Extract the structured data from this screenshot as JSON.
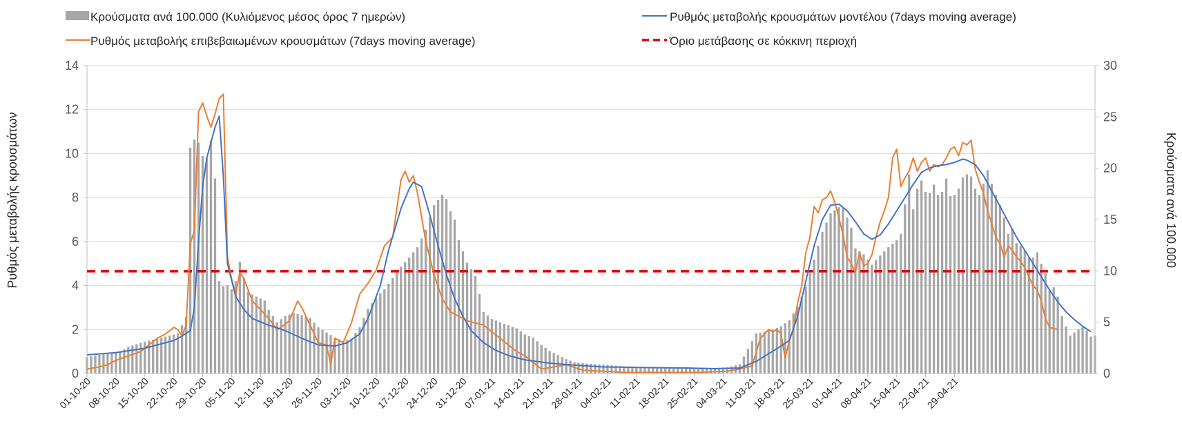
{
  "chart_data": {
    "type": "bar+line",
    "colors": {
      "bars": "#a6a6a6",
      "model": "#4472c4",
      "confirmed": "#ed7d31",
      "threshold": "#e00000",
      "grid": "#d9d9d9",
      "axis_text": "#595959"
    },
    "legend": {
      "bars": "Κρούσματα ανά 100.000 (Κυλιόμενος μέσος όρος 7 ημερών)",
      "model": "Ρυθμός μεταβολής κρουσμάτων μοντέλου (7days moving average)",
      "confirmed": "Ρυθμός μεταβολής επιβεβαιωμένων κρουσμάτων (7days moving average)",
      "threshold": "Όριο μετάβασης σε κόκκινη περιοχή"
    },
    "y_left": {
      "label": "Ρυθμός μεταβολής κρουσμάτων",
      "min": 0,
      "max": 14,
      "ticks": [
        0,
        2,
        4,
        6,
        8,
        10,
        12,
        14
      ]
    },
    "y_right": {
      "label": "Κρούσματα ανά 100.000",
      "min": 0,
      "max": 30,
      "ticks": [
        0,
        5,
        10,
        15,
        20,
        25,
        30
      ]
    },
    "x_tick_labels": [
      "01-10-20",
      "08-10-20",
      "15-10-20",
      "22-10-20",
      "29-10-20",
      "05-11-20",
      "12-11-20",
      "19-11-20",
      "26-11-20",
      "03-12-20",
      "10-12-20",
      "17-12-20",
      "24-12-20",
      "31-12-20",
      "07-01-21",
      "14-01-21",
      "21-01-21",
      "28-01-21",
      "04-02-21",
      "11-02-21",
      "18-02-21",
      "25-02-21",
      "04-03-21",
      "11-03-21",
      "18-03-21",
      "25-03-21",
      "01-04-21",
      "08-04-21",
      "15-04-21",
      "22-04-21",
      "29-04-21"
    ],
    "days": 217,
    "threshold_value": 4.65,
    "bars_points": [
      [
        0,
        1.6
      ],
      [
        4,
        1.9
      ],
      [
        8,
        2.1
      ],
      [
        10,
        2.6
      ],
      [
        14,
        3.1
      ],
      [
        18,
        3.5
      ],
      [
        22,
        3.9
      ],
      [
        24,
        5.5
      ],
      [
        25,
        22.0
      ],
      [
        26,
        22.8
      ],
      [
        27,
        22.5
      ],
      [
        28,
        21.2
      ],
      [
        29,
        21.0
      ],
      [
        30,
        22.7
      ],
      [
        31,
        19.0
      ],
      [
        32,
        9.0
      ],
      [
        33,
        8.5
      ],
      [
        34,
        8.6
      ],
      [
        35,
        8.2
      ],
      [
        36,
        9.0
      ],
      [
        37,
        10.9
      ],
      [
        38,
        9.3
      ],
      [
        39,
        8.0
      ],
      [
        40,
        7.7
      ],
      [
        41,
        7.5
      ],
      [
        42,
        7.3
      ],
      [
        43,
        7.1
      ],
      [
        44,
        6.2
      ],
      [
        46,
        5.0
      ],
      [
        48,
        5.6
      ],
      [
        50,
        5.9
      ],
      [
        52,
        5.7
      ],
      [
        54,
        5.4
      ],
      [
        56,
        4.5
      ],
      [
        58,
        4.0
      ],
      [
        60,
        3.5
      ],
      [
        62,
        3.2
      ],
      [
        64,
        3.4
      ],
      [
        66,
        4.5
      ],
      [
        68,
        6.3
      ],
      [
        70,
        7.4
      ],
      [
        72,
        8.2
      ],
      [
        74,
        9.3
      ],
      [
        76,
        10.4
      ],
      [
        78,
        11.3
      ],
      [
        80,
        12.3
      ],
      [
        82,
        14.0
      ],
      [
        84,
        16.4
      ],
      [
        86,
        17.4
      ],
      [
        87,
        17.0
      ],
      [
        88,
        15.8
      ],
      [
        89,
        15.0
      ],
      [
        90,
        13.0
      ],
      [
        92,
        10.8
      ],
      [
        94,
        9.5
      ],
      [
        96,
        6.0
      ],
      [
        98,
        5.3
      ],
      [
        100,
        5.0
      ],
      [
        102,
        4.7
      ],
      [
        104,
        4.4
      ],
      [
        106,
        3.8
      ],
      [
        108,
        3.5
      ],
      [
        110,
        2.8
      ],
      [
        112,
        2.2
      ],
      [
        114,
        1.8
      ],
      [
        116,
        1.4
      ],
      [
        118,
        1.1
      ],
      [
        120,
        1.0
      ],
      [
        124,
        0.9
      ],
      [
        130,
        0.7
      ],
      [
        135,
        0.6
      ],
      [
        140,
        0.6
      ],
      [
        145,
        0.5
      ],
      [
        150,
        0.5
      ],
      [
        155,
        0.6
      ],
      [
        158,
        0.9
      ],
      [
        162,
        3.9
      ],
      [
        164,
        4.1
      ],
      [
        166,
        4.3
      ],
      [
        168,
        4.6
      ],
      [
        170,
        5.2
      ],
      [
        172,
        6.5
      ],
      [
        174,
        8.5
      ],
      [
        176,
        11.1
      ],
      [
        178,
        13.8
      ],
      [
        180,
        15.6
      ],
      [
        182,
        16.2
      ],
      [
        183,
        16.1
      ],
      [
        184,
        15.2
      ],
      [
        185,
        14.2
      ],
      [
        186,
        12.2
      ],
      [
        188,
        11.6
      ],
      [
        190,
        10.6
      ],
      [
        192,
        11.5
      ],
      [
        194,
        12.3
      ],
      [
        196,
        13.0
      ],
      [
        197,
        13.6
      ],
      [
        198,
        16.5
      ],
      [
        199,
        19.4
      ],
      [
        200,
        16.0
      ],
      [
        201,
        18.0
      ],
      [
        202,
        18.8
      ],
      [
        203,
        17.7
      ],
      [
        204,
        17.6
      ],
      [
        205,
        18.4
      ],
      [
        206,
        17.4
      ],
      [
        207,
        17.7
      ],
      [
        208,
        19.0
      ],
      [
        209,
        17.3
      ],
      [
        210,
        17.4
      ],
      [
        211,
        18.0
      ],
      [
        212,
        19.1
      ],
      [
        213,
        19.4
      ],
      [
        214,
        19.2
      ],
      [
        215,
        18.0
      ],
      [
        216,
        17.4
      ],
      [
        217,
        18.5
      ],
      [
        218,
        19.8
      ],
      [
        219,
        18.5
      ],
      [
        220,
        17.4
      ],
      [
        221,
        16.4
      ],
      [
        222,
        15.2
      ],
      [
        223,
        13.6
      ],
      [
        224,
        14.1
      ],
      [
        225,
        12.7
      ],
      [
        226,
        12.4
      ],
      [
        227,
        12.0
      ],
      [
        228,
        11.3
      ],
      [
        229,
        11.3
      ],
      [
        230,
        11.8
      ],
      [
        231,
        10.7
      ],
      [
        232,
        9.8
      ],
      [
        233,
        8.1
      ],
      [
        234,
        8.4
      ],
      [
        235,
        7.5
      ],
      [
        236,
        5.6
      ],
      [
        237,
        4.6
      ],
      [
        238,
        3.7
      ],
      [
        239,
        4.0
      ],
      [
        240,
        4.3
      ],
      [
        241,
        4.5
      ],
      [
        242,
        4.2
      ],
      [
        243,
        3.6
      ],
      [
        244,
        3.7
      ]
    ],
    "model_points": [
      [
        0,
        0.85
      ],
      [
        7,
        0.95
      ],
      [
        14,
        1.15
      ],
      [
        21,
        1.5
      ],
      [
        23,
        1.7
      ],
      [
        25,
        1.95
      ],
      [
        26,
        3.0
      ],
      [
        27,
        6.0
      ],
      [
        28,
        8.5
      ],
      [
        29,
        9.8
      ],
      [
        30,
        10.5
      ],
      [
        31,
        11.2
      ],
      [
        32,
        11.7
      ],
      [
        33,
        9.0
      ],
      [
        34,
        5.0
      ],
      [
        36,
        3.5
      ],
      [
        38,
        2.9
      ],
      [
        40,
        2.5
      ],
      [
        44,
        2.2
      ],
      [
        48,
        1.95
      ],
      [
        52,
        1.6
      ],
      [
        56,
        1.3
      ],
      [
        60,
        1.25
      ],
      [
        63,
        1.4
      ],
      [
        66,
        1.8
      ],
      [
        68,
        2.5
      ],
      [
        71,
        4.0
      ],
      [
        73,
        5.6
      ],
      [
        76,
        7.5
      ],
      [
        78,
        8.4
      ],
      [
        79,
        8.7
      ],
      [
        81,
        8.5
      ],
      [
        83,
        7.2
      ],
      [
        85,
        5.8
      ],
      [
        87,
        4.5
      ],
      [
        89,
        3.4
      ],
      [
        91,
        2.6
      ],
      [
        93,
        1.95
      ],
      [
        96,
        1.4
      ],
      [
        99,
        1.05
      ],
      [
        102,
        0.82
      ],
      [
        106,
        0.62
      ],
      [
        112,
        0.47
      ],
      [
        118,
        0.38
      ],
      [
        125,
        0.3
      ],
      [
        135,
        0.27
      ],
      [
        145,
        0.25
      ],
      [
        152,
        0.22
      ],
      [
        158,
        0.25
      ],
      [
        162,
        0.55
      ],
      [
        165,
        0.9
      ],
      [
        168,
        1.25
      ],
      [
        170,
        1.5
      ],
      [
        172,
        2.6
      ],
      [
        174,
        4.2
      ],
      [
        176,
        5.8
      ],
      [
        178,
        7.0
      ],
      [
        180,
        7.65
      ],
      [
        182,
        7.7
      ],
      [
        184,
        7.4
      ],
      [
        186,
        6.9
      ],
      [
        188,
        6.35
      ],
      [
        190,
        6.1
      ],
      [
        192,
        6.3
      ],
      [
        194,
        6.8
      ],
      [
        196,
        7.4
      ],
      [
        198,
        8.0
      ],
      [
        200,
        8.6
      ],
      [
        202,
        9.15
      ],
      [
        204,
        9.35
      ],
      [
        206,
        9.45
      ],
      [
        208,
        9.5
      ],
      [
        210,
        9.6
      ],
      [
        212,
        9.75
      ],
      [
        213,
        9.7
      ],
      [
        215,
        9.5
      ],
      [
        217,
        9.0
      ],
      [
        219,
        8.3
      ],
      [
        221,
        7.6
      ],
      [
        223,
        6.9
      ],
      [
        225,
        6.2
      ],
      [
        227,
        5.6
      ],
      [
        229,
        5.0
      ],
      [
        231,
        4.4
      ],
      [
        233,
        3.8
      ],
      [
        235,
        3.25
      ],
      [
        237,
        2.8
      ],
      [
        239,
        2.45
      ],
      [
        241,
        2.15
      ],
      [
        243,
        1.9
      ]
    ],
    "confirmed_points": [
      [
        0,
        0.2
      ],
      [
        3,
        0.3
      ],
      [
        5,
        0.4
      ],
      [
        7,
        0.6
      ],
      [
        10,
        0.8
      ],
      [
        13,
        1.0
      ],
      [
        15,
        1.3
      ],
      [
        17,
        1.6
      ],
      [
        19,
        1.8
      ],
      [
        21,
        2.1
      ],
      [
        22,
        2.0
      ],
      [
        23,
        1.7
      ],
      [
        24,
        2.2
      ],
      [
        25,
        5.9
      ],
      [
        26,
        6.5
      ],
      [
        27,
        11.9
      ],
      [
        28,
        12.3
      ],
      [
        29,
        11.7
      ],
      [
        30,
        11.2
      ],
      [
        31,
        11.8
      ],
      [
        32,
        12.5
      ],
      [
        33,
        12.7
      ],
      [
        34,
        5.3
      ],
      [
        35,
        4.3
      ],
      [
        36,
        3.6
      ],
      [
        37,
        4.6
      ],
      [
        38,
        4.3
      ],
      [
        39,
        3.8
      ],
      [
        40,
        3.3
      ],
      [
        42,
        2.9
      ],
      [
        44,
        2.5
      ],
      [
        46,
        2.0
      ],
      [
        47,
        2.1
      ],
      [
        49,
        2.4
      ],
      [
        51,
        3.3
      ],
      [
        52,
        3.0
      ],
      [
        54,
        2.2
      ],
      [
        56,
        1.4
      ],
      [
        58,
        1.3
      ],
      [
        59,
        0.4
      ],
      [
        60,
        1.6
      ],
      [
        62,
        1.4
      ],
      [
        64,
        2.3
      ],
      [
        66,
        3.6
      ],
      [
        68,
        4.1
      ],
      [
        70,
        4.7
      ],
      [
        72,
        5.8
      ],
      [
        74,
        6.2
      ],
      [
        76,
        8.8
      ],
      [
        77,
        9.2
      ],
      [
        78,
        8.7
      ],
      [
        79,
        9.0
      ],
      [
        80,
        8.2
      ],
      [
        82,
        6.0
      ],
      [
        84,
        4.5
      ],
      [
        86,
        3.4
      ],
      [
        88,
        2.8
      ],
      [
        90,
        2.6
      ],
      [
        92,
        2.4
      ],
      [
        94,
        2.3
      ],
      [
        96,
        2.2
      ],
      [
        98,
        1.9
      ],
      [
        100,
        1.6
      ],
      [
        102,
        1.3
      ],
      [
        104,
        1.0
      ],
      [
        106,
        0.8
      ],
      [
        108,
        0.5
      ],
      [
        110,
        0.2
      ],
      [
        113,
        0.3
      ],
      [
        116,
        0.4
      ],
      [
        120,
        0.15
      ],
      [
        125,
        0.1
      ],
      [
        130,
        0.05
      ],
      [
        140,
        0.05
      ],
      [
        148,
        0.05
      ],
      [
        155,
        0.1
      ],
      [
        158,
        0.2
      ],
      [
        161,
        0.35
      ],
      [
        163,
        1.6
      ],
      [
        164,
        1.8
      ],
      [
        165,
        2.0
      ],
      [
        166,
        1.9
      ],
      [
        167,
        2.0
      ],
      [
        168,
        1.8
      ],
      [
        169,
        0.7
      ],
      [
        170,
        1.5
      ],
      [
        171,
        2.0
      ],
      [
        172,
        3.2
      ],
      [
        173,
        4.0
      ],
      [
        174,
        5.5
      ],
      [
        175,
        6.2
      ],
      [
        176,
        7.6
      ],
      [
        177,
        7.3
      ],
      [
        178,
        7.9
      ],
      [
        179,
        8.0
      ],
      [
        180,
        8.3
      ],
      [
        181,
        7.8
      ],
      [
        182,
        7.1
      ],
      [
        183,
        6.3
      ],
      [
        184,
        5.3
      ],
      [
        185,
        5.0
      ],
      [
        186,
        4.6
      ],
      [
        187,
        5.5
      ],
      [
        188,
        4.9
      ],
      [
        189,
        5.0
      ],
      [
        190,
        5.4
      ],
      [
        191,
        6.2
      ],
      [
        192,
        6.9
      ],
      [
        193,
        7.4
      ],
      [
        194,
        8.0
      ],
      [
        195,
        9.8
      ],
      [
        196,
        10.2
      ],
      [
        197,
        8.5
      ],
      [
        198,
        8.9
      ],
      [
        199,
        9.2
      ],
      [
        200,
        9.8
      ],
      [
        201,
        9.2
      ],
      [
        202,
        9.6
      ],
      [
        203,
        9.8
      ],
      [
        204,
        9.2
      ],
      [
        205,
        9.5
      ],
      [
        206,
        9.4
      ],
      [
        207,
        9.5
      ],
      [
        208,
        9.8
      ],
      [
        209,
        10.2
      ],
      [
        210,
        10.3
      ],
      [
        211,
        9.9
      ],
      [
        212,
        10.5
      ],
      [
        213,
        10.4
      ],
      [
        214,
        10.6
      ],
      [
        215,
        9.3
      ],
      [
        216,
        8.7
      ],
      [
        217,
        8.2
      ],
      [
        218,
        7.4
      ],
      [
        219,
        6.8
      ],
      [
        220,
        6.2
      ],
      [
        221,
        5.9
      ],
      [
        222,
        5.3
      ],
      [
        223,
        5.8
      ],
      [
        224,
        5.6
      ],
      [
        225,
        5.3
      ],
      [
        226,
        5.1
      ],
      [
        227,
        4.8
      ],
      [
        228,
        4.4
      ],
      [
        229,
        4.0
      ],
      [
        230,
        3.8
      ],
      [
        231,
        3.3
      ],
      [
        232,
        2.5
      ],
      [
        233,
        2.1
      ],
      [
        234,
        2.05
      ],
      [
        235,
        2.0
      ]
    ]
  }
}
